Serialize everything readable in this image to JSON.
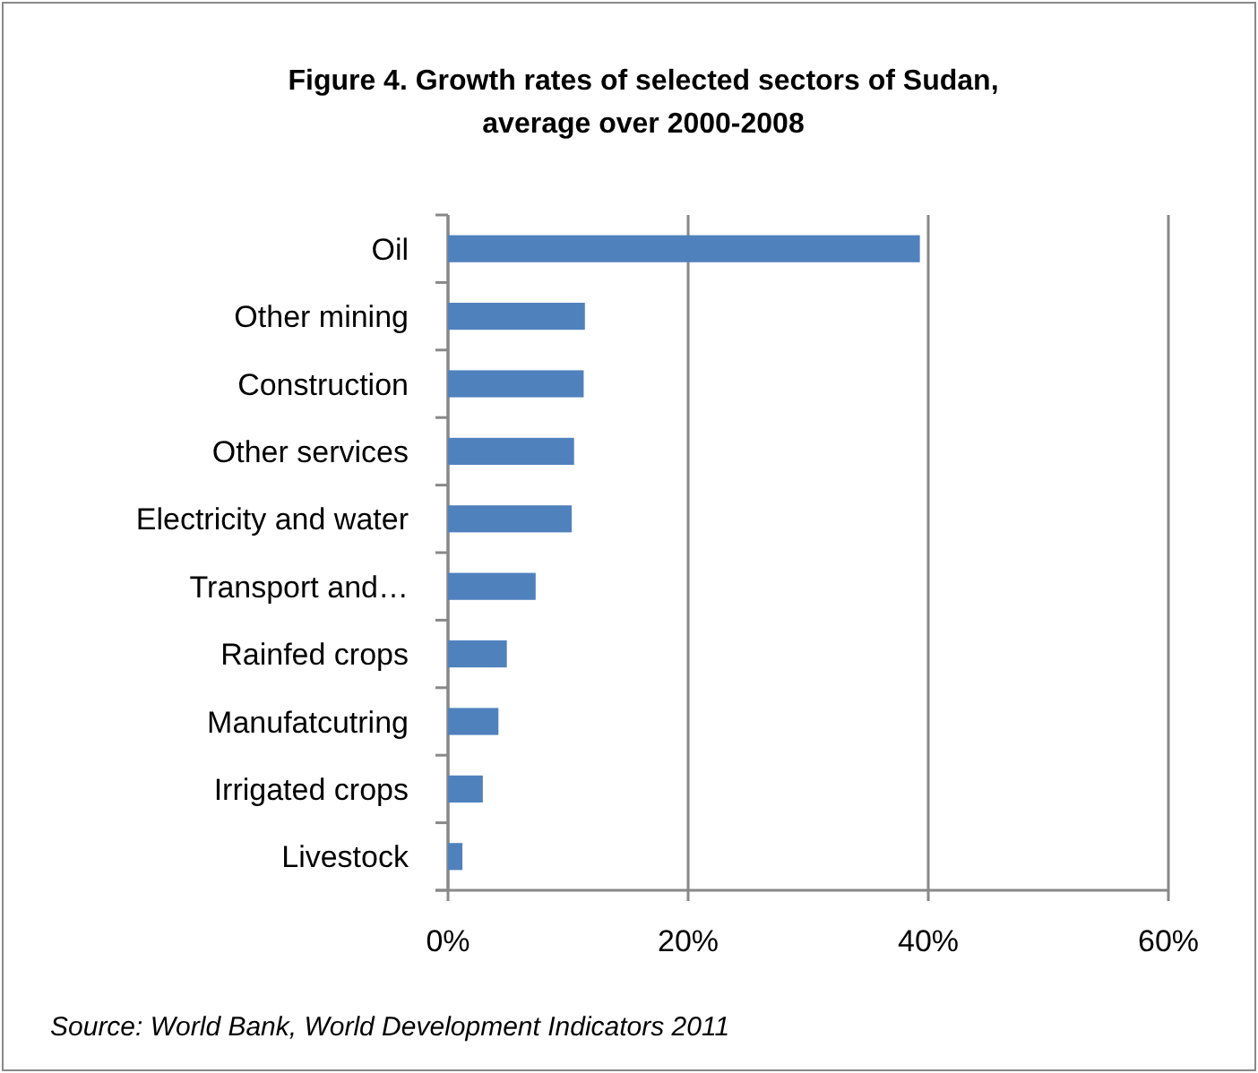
{
  "chart_data": {
    "type": "bar",
    "orientation": "horizontal",
    "title": "Figure 4. Growth rates of selected sectors of Sudan, average over 2000-2008",
    "categories": [
      "Oil",
      "Other mining",
      "Construction",
      "Other services",
      "Electricity and water",
      "Transport and…",
      "Rainfed crops",
      "Manufatcutring",
      "Irrigated crops",
      "Livestock"
    ],
    "values": [
      39.3,
      11.4,
      11.3,
      10.5,
      10.3,
      7.3,
      4.9,
      4.2,
      2.9,
      1.2
    ],
    "color": "#4f81bd",
    "xlim": [
      0,
      60
    ],
    "xticks": [
      {
        "value": 0,
        "label": "0%"
      },
      {
        "value": 20,
        "label": "20%"
      },
      {
        "value": 40,
        "label": "40%"
      },
      {
        "value": 60,
        "label": "60%"
      }
    ],
    "grid": "x",
    "annotations": [
      "Source: World Bank, World Development Indicators 2011"
    ]
  }
}
